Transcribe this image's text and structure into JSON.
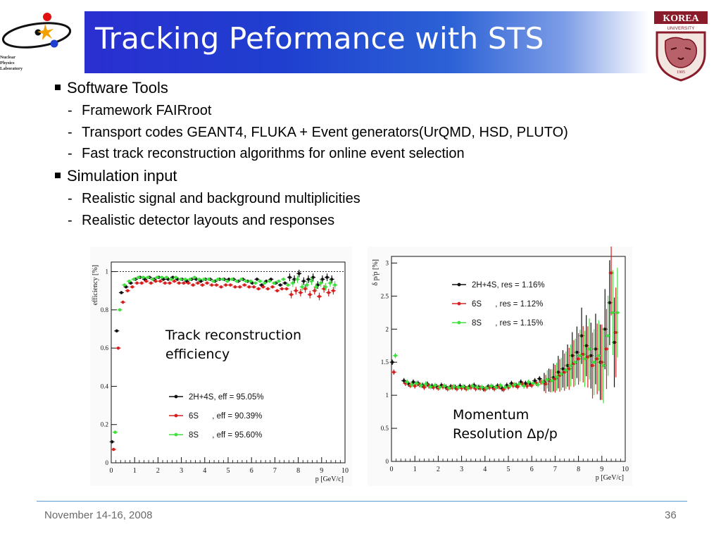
{
  "header": {
    "title": "Tracking Peformance with STS",
    "lab_logo_text": [
      "Nuclear",
      "Physics",
      "Laboratory"
    ],
    "university_logo_text": [
      "KOREA",
      "UNIVERSITY",
      "1905"
    ]
  },
  "bullets": [
    {
      "text": "Software Tools",
      "items": [
        "Framework FAIRroot",
        "Transport codes GEANT4, FLUKA + Event generators(UrQMD, HSD, PLUTO)",
        "Fast track reconstruction algorithms for online event selection"
      ]
    },
    {
      "text": "Simulation input",
      "items": [
        "Realistic signal and background multiplicities",
        "Realistic detector layouts and responses"
      ]
    }
  ],
  "captions": {
    "efficiency": [
      "Track reconstruction",
      "efficiency"
    ],
    "resolution": [
      "Momentum",
      "Resolution Δp/p"
    ]
  },
  "footer": {
    "date": "November 14-16, 2008",
    "page": "36"
  },
  "colors": {
    "black": "#111111",
    "red": "#d62020",
    "green": "#3ee03e",
    "title_bar_start": "#2a2fd0",
    "footer_rule": "#5b9bd5"
  },
  "chart_data": [
    {
      "type": "scatter",
      "ylabel": "efficiency [%]",
      "xlabel": "p [GeV/c]",
      "xlim": [
        0,
        10
      ],
      "ylim": [
        0,
        1.05
      ],
      "xticks": [
        "0",
        "1",
        "2",
        "3",
        "4",
        "5",
        "6",
        "7",
        "8",
        "9",
        "10"
      ],
      "yticks": [
        "0",
        "0.2",
        "0.4",
        "0.6",
        "0.8",
        "1"
      ],
      "reference_line": 1,
      "legend_position": "bottom-center",
      "series": [
        {
          "name": "2H+4S, eff = 95.05%",
          "color": "#111111",
          "x": [
            0.1,
            0.3,
            0.5,
            0.7,
            0.9,
            1.1,
            1.3,
            1.5,
            1.7,
            1.9,
            2.1,
            2.3,
            2.5,
            2.7,
            2.9,
            3.1,
            3.3,
            3.5,
            3.7,
            3.9,
            4.1,
            4.3,
            4.5,
            4.7,
            4.9,
            5.1,
            5.3,
            5.5,
            5.7,
            5.9,
            6.1,
            6.3,
            6.5,
            6.7,
            6.9,
            7.1,
            7.3,
            7.5,
            7.7,
            7.9,
            8.1,
            8.3,
            8.5,
            8.7,
            8.9,
            9.1,
            9.3,
            9.5
          ],
          "y": [
            0.11,
            0.69,
            0.89,
            0.92,
            0.94,
            0.96,
            0.97,
            0.96,
            0.97,
            0.96,
            0.97,
            0.96,
            0.96,
            0.97,
            0.96,
            0.96,
            0.95,
            0.96,
            0.96,
            0.95,
            0.96,
            0.96,
            0.95,
            0.96,
            0.96,
            0.96,
            0.96,
            0.95,
            0.96,
            0.95,
            0.94,
            0.96,
            0.93,
            0.95,
            0.96,
            0.94,
            0.93,
            0.94,
            0.97,
            0.96,
            0.99,
            0.95,
            0.96,
            0.97,
            0.93,
            0.96,
            0.97,
            0.96
          ]
        },
        {
          "name": "6S      , eff = 90.39%",
          "color": "#d62020",
          "x": [
            0.1,
            0.3,
            0.5,
            0.7,
            0.9,
            1.1,
            1.3,
            1.5,
            1.7,
            1.9,
            2.1,
            2.3,
            2.5,
            2.7,
            2.9,
            3.1,
            3.3,
            3.5,
            3.7,
            3.9,
            4.1,
            4.3,
            4.5,
            4.7,
            4.9,
            5.1,
            5.3,
            5.5,
            5.7,
            5.9,
            6.1,
            6.3,
            6.5,
            6.7,
            6.9,
            7.1,
            7.3,
            7.5,
            7.7,
            7.9,
            8.1,
            8.3,
            8.5,
            8.7,
            8.9,
            9.1,
            9.3,
            9.5
          ],
          "y": [
            0.07,
            0.6,
            0.84,
            0.9,
            0.92,
            0.94,
            0.94,
            0.95,
            0.94,
            0.95,
            0.95,
            0.94,
            0.94,
            0.95,
            0.94,
            0.94,
            0.94,
            0.93,
            0.94,
            0.93,
            0.94,
            0.93,
            0.93,
            0.92,
            0.93,
            0.93,
            0.92,
            0.92,
            0.93,
            0.92,
            0.92,
            0.91,
            0.92,
            0.91,
            0.92,
            0.9,
            0.91,
            0.91,
            0.88,
            0.9,
            0.89,
            0.91,
            0.88,
            0.9,
            0.87,
            0.91,
            0.89,
            0.9
          ]
        },
        {
          "name": "8S      , eff = 95.60%",
          "color": "#3ee03e",
          "x": [
            0.1,
            0.3,
            0.5,
            0.7,
            0.9,
            1.1,
            1.3,
            1.5,
            1.7,
            1.9,
            2.1,
            2.3,
            2.5,
            2.7,
            2.9,
            3.1,
            3.3,
            3.5,
            3.7,
            3.9,
            4.1,
            4.3,
            4.5,
            4.7,
            4.9,
            5.1,
            5.3,
            5.5,
            5.7,
            5.9,
            6.1,
            6.3,
            6.5,
            6.7,
            6.9,
            7.1,
            7.3,
            7.5,
            7.7,
            7.9,
            8.1,
            8.3,
            8.5,
            8.7,
            8.9,
            9.1,
            9.3,
            9.5
          ],
          "y": [
            0.16,
            0.8,
            0.93,
            0.95,
            0.96,
            0.97,
            0.97,
            0.97,
            0.96,
            0.97,
            0.97,
            0.97,
            0.96,
            0.97,
            0.96,
            0.96,
            0.96,
            0.97,
            0.96,
            0.96,
            0.96,
            0.95,
            0.96,
            0.96,
            0.95,
            0.96,
            0.95,
            0.96,
            0.95,
            0.95,
            0.94,
            0.95,
            0.94,
            0.95,
            0.94,
            0.95,
            0.96,
            0.93,
            0.94,
            0.96,
            0.92,
            0.93,
            0.95,
            0.92,
            0.94,
            0.92,
            0.94,
            0.93
          ]
        }
      ]
    },
    {
      "type": "scatter",
      "ylabel": "δ p/p [%]",
      "xlabel": "p [GeV/c]",
      "xlim": [
        0,
        10
      ],
      "ylim": [
        0,
        3.1
      ],
      "xticks": [
        "0",
        "1",
        "2",
        "3",
        "4",
        "5",
        "6",
        "7",
        "8",
        "9",
        "10"
      ],
      "yticks": [
        "0",
        "0.5",
        "1",
        "1.5",
        "2",
        "2.5",
        "3"
      ],
      "legend_position": "top-center",
      "series": [
        {
          "name": "2H+4S, res = 1.16%",
          "color": "#111111",
          "x": [
            0.1,
            0.6,
            0.8,
            1.0,
            1.2,
            1.4,
            1.6,
            1.8,
            2.0,
            2.2,
            2.4,
            2.6,
            2.8,
            3.0,
            3.2,
            3.4,
            3.6,
            3.8,
            4.0,
            4.2,
            4.4,
            4.6,
            4.8,
            5.0,
            5.2,
            5.4,
            5.6,
            5.8,
            6.0,
            6.2,
            6.4,
            6.6,
            6.8,
            7.0,
            7.2,
            7.4,
            7.6,
            7.8,
            8.0,
            8.2,
            8.4,
            8.6,
            8.8,
            9.0,
            9.2,
            9.4,
            9.6
          ],
          "y": [
            1.5,
            1.22,
            1.17,
            1.2,
            1.18,
            1.15,
            1.17,
            1.14,
            1.13,
            1.15,
            1.12,
            1.13,
            1.12,
            1.14,
            1.12,
            1.13,
            1.15,
            1.12,
            1.1,
            1.13,
            1.12,
            1.14,
            1.1,
            1.15,
            1.18,
            1.15,
            1.2,
            1.18,
            1.17,
            1.22,
            1.25,
            1.2,
            1.23,
            1.27,
            1.35,
            1.4,
            1.45,
            1.6,
            1.65,
            1.9,
            1.75,
            1.6,
            1.7,
            1.5,
            2.0,
            2.4,
            1.8
          ]
        },
        {
          "name": "6S      , res = 1.12%",
          "color": "#d62020",
          "x": [
            0.1,
            0.6,
            0.8,
            1.0,
            1.2,
            1.4,
            1.6,
            1.8,
            2.0,
            2.2,
            2.4,
            2.6,
            2.8,
            3.0,
            3.2,
            3.4,
            3.6,
            3.8,
            4.0,
            4.2,
            4.4,
            4.6,
            4.8,
            5.0,
            5.2,
            5.4,
            5.6,
            5.8,
            6.0,
            6.2,
            6.4,
            6.6,
            6.8,
            7.0,
            7.2,
            7.4,
            7.6,
            7.8,
            8.0,
            8.2,
            8.4,
            8.6,
            8.8,
            9.0,
            9.2,
            9.4,
            9.6
          ],
          "y": [
            1.35,
            1.18,
            1.15,
            1.14,
            1.16,
            1.12,
            1.14,
            1.12,
            1.11,
            1.13,
            1.1,
            1.12,
            1.1,
            1.11,
            1.1,
            1.12,
            1.1,
            1.11,
            1.09,
            1.12,
            1.1,
            1.13,
            1.09,
            1.12,
            1.15,
            1.13,
            1.17,
            1.14,
            1.15,
            1.18,
            1.2,
            1.17,
            1.22,
            1.25,
            1.3,
            1.35,
            1.4,
            1.48,
            1.55,
            1.62,
            1.58,
            1.45,
            1.55,
            1.5,
            1.7,
            2.85,
            1.95
          ]
        },
        {
          "name": "8S      , res = 1.15%",
          "color": "#3ee03e",
          "x": [
            0.1,
            0.6,
            0.8,
            1.0,
            1.2,
            1.4,
            1.6,
            1.8,
            2.0,
            2.2,
            2.4,
            2.6,
            2.8,
            3.0,
            3.2,
            3.4,
            3.6,
            3.8,
            4.0,
            4.2,
            4.4,
            4.6,
            4.8,
            5.0,
            5.2,
            5.4,
            5.6,
            5.8,
            6.0,
            6.2,
            6.4,
            6.6,
            6.8,
            7.0,
            7.2,
            7.4,
            7.6,
            7.8,
            8.0,
            8.2,
            8.4,
            8.6,
            8.8,
            9.0,
            9.2,
            9.4,
            9.6
          ],
          "y": [
            1.6,
            1.2,
            1.16,
            1.18,
            1.15,
            1.17,
            1.13,
            1.15,
            1.12,
            1.14,
            1.11,
            1.13,
            1.12,
            1.13,
            1.11,
            1.14,
            1.12,
            1.12,
            1.11,
            1.14,
            1.12,
            1.15,
            1.12,
            1.14,
            1.16,
            1.17,
            1.14,
            1.2,
            1.18,
            1.16,
            1.2,
            1.24,
            1.22,
            1.28,
            1.32,
            1.38,
            1.45,
            1.5,
            1.6,
            1.55,
            1.7,
            1.5,
            1.6,
            1.45,
            1.9,
            2.25,
            2.25
          ]
        }
      ]
    }
  ]
}
